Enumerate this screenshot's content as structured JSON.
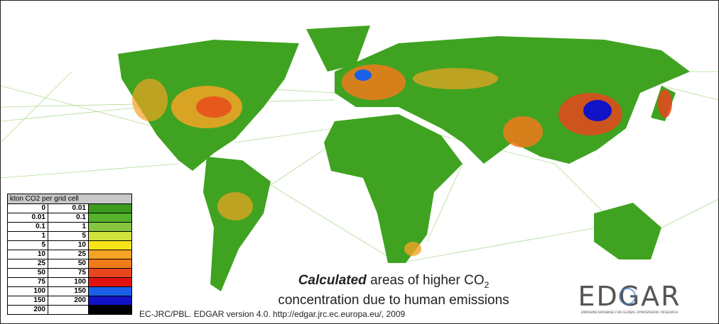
{
  "legend": {
    "title": "kton CO2 per grid cell",
    "rows": [
      {
        "from": "0",
        "to": "0.01",
        "color": "#3d9a1f"
      },
      {
        "from": "0.01",
        "to": "0.1",
        "color": "#55b22c"
      },
      {
        "from": "0.1",
        "to": "1",
        "color": "#86c440"
      },
      {
        "from": "1",
        "to": "5",
        "color": "#cfe23c"
      },
      {
        "from": "5",
        "to": "10",
        "color": "#f7e418"
      },
      {
        "from": "10",
        "to": "25",
        "color": "#f4a324"
      },
      {
        "from": "25",
        "to": "50",
        "color": "#f17a1b"
      },
      {
        "from": "50",
        "to": "75",
        "color": "#e8461c"
      },
      {
        "from": "75",
        "to": "100",
        "color": "#e01212"
      },
      {
        "from": "100",
        "to": "150",
        "color": "#1c60e8"
      },
      {
        "from": "150",
        "to": "200",
        "color": "#1212c6"
      },
      {
        "from": "200",
        "color": "#000000"
      }
    ]
  },
  "caption": {
    "emphasis": "Calculated",
    "line1": " areas of higher CO",
    "subscript": "2",
    "line2": "concentration due to human emissions"
  },
  "source": "EC-JRC/PBL. EDGAR version 4.0. http://edgar.jrc.ec.europa.eu/, 2009",
  "logo": {
    "name": "EDGAR",
    "tagline": "EMISSION DATABASE FOR GLOBAL ATMOSPHERIC RESEARCH"
  }
}
